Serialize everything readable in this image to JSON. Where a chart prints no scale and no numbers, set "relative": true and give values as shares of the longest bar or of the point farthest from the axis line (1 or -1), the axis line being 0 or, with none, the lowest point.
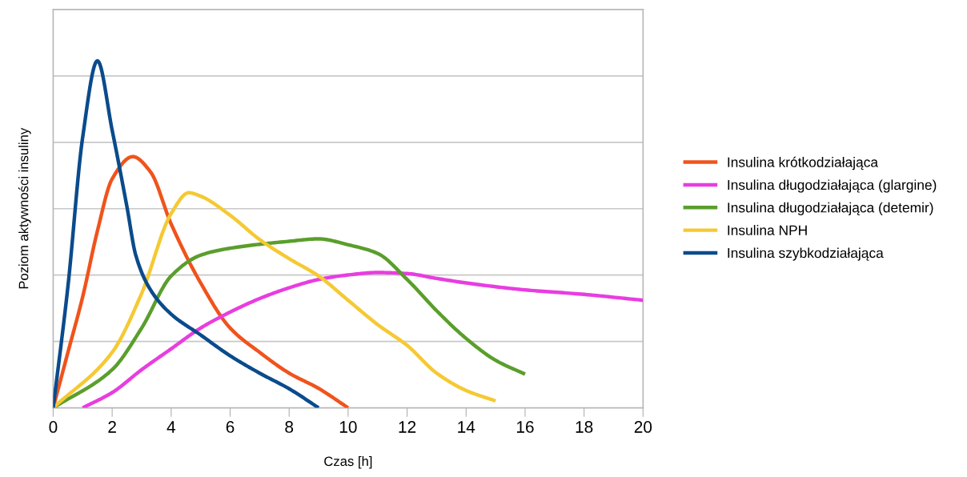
{
  "chart_data": {
    "type": "line",
    "relative": true,
    "xlabel": "Czas [h]",
    "ylabel": "Poziom aktywności insuliny",
    "xlim": [
      0,
      20
    ],
    "xticks": [
      0,
      2,
      4,
      6,
      8,
      10,
      12,
      14,
      16,
      18,
      20
    ],
    "grid": "y",
    "legend": "right",
    "tick_labels": "x",
    "line_style": "solid",
    "marker": "none",
    "series": [
      {
        "name": "Insulina krótkodziałająca",
        "color": "#f0531c",
        "x": [
          0,
          0.5,
          1,
          1.5,
          2,
          2.7,
          3.3,
          4,
          5,
          6,
          7,
          8,
          9,
          10
        ],
        "values": [
          0,
          0.16,
          0.32,
          0.51,
          0.66,
          0.724,
          0.68,
          0.53,
          0.36,
          0.23,
          0.16,
          0.1,
          0.056,
          0
        ]
      },
      {
        "name": "Insulina długodziałająca (glargine)",
        "color": "#e83de0",
        "x": [
          1,
          2,
          3,
          4,
          5,
          6,
          7,
          8,
          9,
          10,
          11,
          12,
          13,
          14,
          16,
          18,
          20
        ],
        "values": [
          0,
          0.044,
          0.11,
          0.17,
          0.23,
          0.276,
          0.315,
          0.346,
          0.37,
          0.383,
          0.39,
          0.387,
          0.373,
          0.36,
          0.34,
          0.327,
          0.31
        ]
      },
      {
        "name": "Insulina długodziałająca (detemir)",
        "color": "#5a9e2c",
        "x": [
          0,
          2,
          3,
          4,
          5,
          6,
          8,
          9,
          10,
          11,
          12,
          13,
          14,
          15,
          16
        ],
        "values": [
          0,
          0.11,
          0.23,
          0.38,
          0.44,
          0.46,
          0.48,
          0.487,
          0.47,
          0.445,
          0.37,
          0.28,
          0.2,
          0.137,
          0.097
        ]
      },
      {
        "name": "Insulina NPH",
        "color": "#f5c933",
        "x": [
          0,
          2,
          3,
          4,
          4.6,
          5,
          6,
          7,
          8,
          9,
          10,
          11,
          12,
          13,
          14,
          15
        ],
        "values": [
          0,
          0.16,
          0.33,
          0.56,
          0.62,
          0.61,
          0.555,
          0.485,
          0.43,
          0.38,
          0.31,
          0.24,
          0.18,
          0.1,
          0.05,
          0.02
        ]
      },
      {
        "name": "Insulina szybkodziałająca",
        "color": "#0a4b8c",
        "x": [
          0,
          0.5,
          1,
          1.5,
          2,
          2.5,
          2.8,
          3.3,
          4,
          5,
          6,
          7,
          8,
          9
        ],
        "values": [
          0,
          0.35,
          0.78,
          1,
          0.8,
          0.58,
          0.44,
          0.34,
          0.27,
          0.21,
          0.15,
          0.1,
          0.055,
          0
        ]
      }
    ]
  }
}
